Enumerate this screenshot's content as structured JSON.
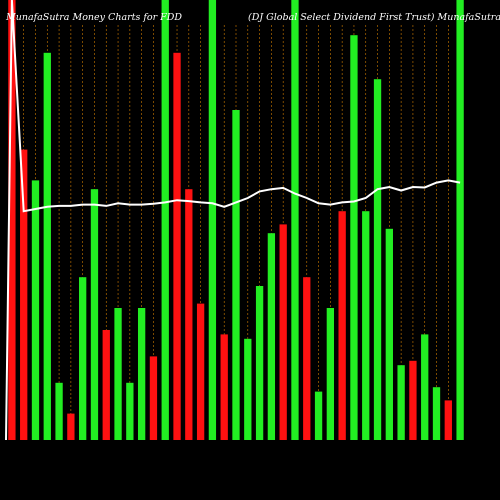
{
  "chart_data": {
    "type": "bar",
    "title_left": "MunafaSutra  Money  Charts for FDD",
    "title_right": "(DJ Global Select Dividend First Trust) MunafaSutra.com",
    "ylim": [
      0,
      100
    ],
    "colors": {
      "up": "#22ee22",
      "down": "#ff1111",
      "background": "#000000",
      "grid": "#cc7a00",
      "line": "#ffffff"
    },
    "bars": [
      {
        "value": 100,
        "color": "down"
      },
      {
        "value": 66,
        "color": "down"
      },
      {
        "value": 59,
        "color": "up"
      },
      {
        "value": 88,
        "color": "up"
      },
      {
        "value": 13,
        "color": "up"
      },
      {
        "value": 6,
        "color": "down"
      },
      {
        "value": 37,
        "color": "up"
      },
      {
        "value": 57,
        "color": "up"
      },
      {
        "value": 25,
        "color": "down"
      },
      {
        "value": 30,
        "color": "up"
      },
      {
        "value": 13,
        "color": "up"
      },
      {
        "value": 30,
        "color": "up"
      },
      {
        "value": 19,
        "color": "down"
      },
      {
        "value": 100,
        "color": "up"
      },
      {
        "value": 88,
        "color": "down"
      },
      {
        "value": 57,
        "color": "down"
      },
      {
        "value": 31,
        "color": "down"
      },
      {
        "value": 100,
        "color": "up"
      },
      {
        "value": 24,
        "color": "down"
      },
      {
        "value": 75,
        "color": "up"
      },
      {
        "value": 23,
        "color": "up"
      },
      {
        "value": 35,
        "color": "up"
      },
      {
        "value": 47,
        "color": "up"
      },
      {
        "value": 49,
        "color": "down"
      },
      {
        "value": 100,
        "color": "up"
      },
      {
        "value": 37,
        "color": "down"
      },
      {
        "value": 11,
        "color": "up"
      },
      {
        "value": 30,
        "color": "up"
      },
      {
        "value": 52,
        "color": "down"
      },
      {
        "value": 92,
        "color": "up"
      },
      {
        "value": 52,
        "color": "up"
      },
      {
        "value": 82,
        "color": "up"
      },
      {
        "value": 48,
        "color": "up"
      },
      {
        "value": 17,
        "color": "up"
      },
      {
        "value": 18,
        "color": "down"
      },
      {
        "value": 24,
        "color": "up"
      },
      {
        "value": 12,
        "color": "up"
      },
      {
        "value": 9,
        "color": "down"
      },
      {
        "value": 100,
        "color": "up"
      }
    ],
    "line": [
      100,
      52,
      52.5,
      53,
      53.2,
      53.2,
      53.5,
      53.5,
      53.2,
      53.8,
      53.5,
      53.5,
      53.7,
      54,
      54.5,
      54.3,
      54,
      53.8,
      53,
      54,
      55,
      56.5,
      57,
      57.3,
      56,
      55,
      53.8,
      53.5,
      54,
      54.2,
      55,
      57,
      57.5,
      56.7,
      57.5,
      57.4,
      58.5,
      59,
      58.5
    ]
  }
}
